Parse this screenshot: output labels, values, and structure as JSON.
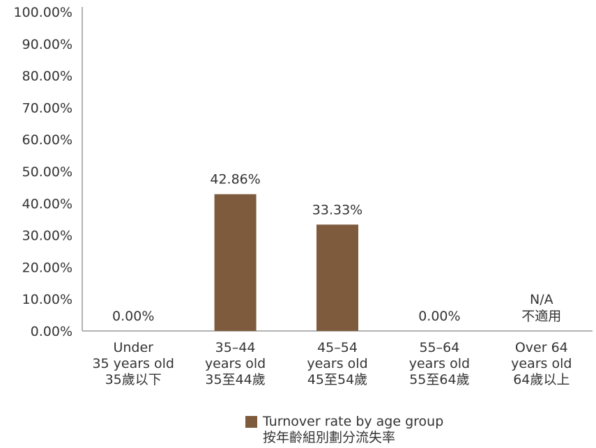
{
  "chart_data": {
    "type": "bar",
    "categories": [
      [
        "Under",
        "35 years old",
        "35歲以下"
      ],
      [
        "35–44",
        "years old",
        "35至44歲"
      ],
      [
        "45–54",
        "years old",
        "45至54歲"
      ],
      [
        "55–64",
        "years old",
        "55至64歲"
      ],
      [
        "Over 64",
        "years old",
        "64歲以上"
      ]
    ],
    "values": [
      0.0,
      42.86,
      33.33,
      0.0,
      null
    ],
    "data_labels": [
      [
        "0.00%"
      ],
      [
        "42.86%"
      ],
      [
        "33.33%"
      ],
      [
        "0.00%"
      ],
      [
        "N/A",
        "不適用"
      ]
    ],
    "y_ticks": [
      "0.00%",
      "10.00%",
      "20.00%",
      "30.00%",
      "40.00%",
      "50.00%",
      "60.00%",
      "70.00%",
      "80.00%",
      "90.00%",
      "100.00%"
    ],
    "ylim": [
      0,
      100
    ],
    "grid": false,
    "legend_position": "bottom",
    "series": [
      {
        "name": "Turnover rate by age group",
        "name_zh": "按年齡組別劃分流失率",
        "color": "#7d5b3c"
      }
    ]
  },
  "colors": {
    "bar": "#7d5b3c",
    "axis": "#9a9a9a",
    "text": "#333333"
  }
}
